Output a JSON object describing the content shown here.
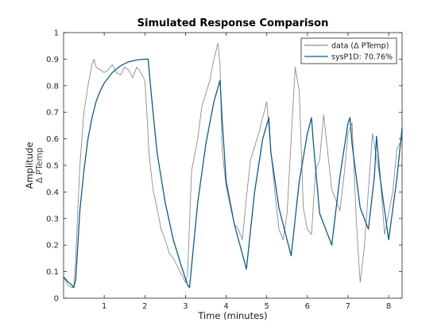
{
  "window": {
    "background": "#ffffff"
  },
  "chart_data": {
    "type": "line",
    "title": "Simulated Response Comparison",
    "xlabel": "Time (minutes)",
    "ylabel": "Amplitude",
    "ylabel_sub": "Δ PTemp",
    "xlim": [
      0,
      8.33
    ],
    "ylim": [
      0,
      1
    ],
    "xticks": [
      1,
      2,
      3,
      4,
      5,
      6,
      7,
      8
    ],
    "xtick_labels": [
      "1",
      "2",
      "3",
      "4",
      "5",
      "6",
      "7",
      "8"
    ],
    "yticks": [
      0,
      0.1,
      0.2,
      0.3,
      0.4,
      0.5,
      0.6,
      0.7,
      0.8,
      0.9,
      1
    ],
    "ytick_labels": [
      "0",
      "0.1",
      "0.2",
      "0.3",
      "0.4",
      "0.5",
      "0.6",
      "0.7",
      "0.8",
      "0.9",
      "1"
    ],
    "grid": false,
    "legend_position": "top-right",
    "series": [
      {
        "name": "data (Δ PTemp)",
        "color": "#8c8c8c",
        "x": [
          0,
          0.1,
          0.2,
          0.25,
          0.3,
          0.35,
          0.4,
          0.5,
          0.6,
          0.7,
          0.75,
          0.8,
          0.9,
          1.0,
          1.1,
          1.2,
          1.3,
          1.4,
          1.5,
          1.6,
          1.7,
          1.8,
          1.9,
          2.0,
          2.05,
          2.1,
          2.2,
          2.3,
          2.4,
          2.5,
          2.6,
          2.7,
          2.8,
          2.9,
          3.0,
          3.05,
          3.15,
          3.3,
          3.4,
          3.5,
          3.6,
          3.7,
          3.8,
          3.85,
          3.9,
          4.0,
          4.1,
          4.2,
          4.3,
          4.4,
          4.5,
          4.6,
          4.8,
          5.0,
          5.1,
          5.2,
          5.3,
          5.4,
          5.5,
          5.6,
          5.7,
          5.8,
          5.9,
          6.0,
          6.1,
          6.2,
          6.3,
          6.4,
          6.6,
          6.8,
          6.9,
          7.0,
          7.1,
          7.2,
          7.3,
          7.4,
          7.6,
          7.8,
          7.9,
          8.0,
          8.1,
          8.2,
          8.33
        ],
        "y": [
          0.08,
          0.05,
          0.04,
          0.04,
          0.15,
          0.33,
          0.5,
          0.7,
          0.8,
          0.88,
          0.9,
          0.87,
          0.86,
          0.85,
          0.86,
          0.88,
          0.85,
          0.84,
          0.87,
          0.86,
          0.83,
          0.87,
          0.85,
          0.82,
          0.7,
          0.55,
          0.41,
          0.34,
          0.26,
          0.22,
          0.17,
          0.15,
          0.12,
          0.09,
          0.06,
          0.09,
          0.48,
          0.6,
          0.72,
          0.77,
          0.82,
          0.9,
          0.96,
          0.88,
          0.56,
          0.42,
          0.35,
          0.28,
          0.26,
          0.22,
          0.38,
          0.52,
          0.62,
          0.74,
          0.56,
          0.4,
          0.26,
          0.22,
          0.32,
          0.6,
          0.87,
          0.78,
          0.34,
          0.26,
          0.24,
          0.48,
          0.52,
          0.69,
          0.41,
          0.33,
          0.46,
          0.62,
          0.66,
          0.3,
          0.06,
          0.19,
          0.62,
          0.44,
          0.24,
          0.32,
          0.4,
          0.56,
          0.6
        ]
      },
      {
        "name": "sysP1D: 70.76%",
        "color": "#0b5d86",
        "x": [
          0,
          0.12,
          0.2,
          0.25,
          0.3,
          0.4,
          0.5,
          0.6,
          0.7,
          0.8,
          0.9,
          1.0,
          1.2,
          1.4,
          1.6,
          1.8,
          2.0,
          2.05,
          2.08,
          2.15,
          2.3,
          2.5,
          2.7,
          2.9,
          3.05,
          3.1,
          3.3,
          3.5,
          3.7,
          3.85,
          3.9,
          4.0,
          4.2,
          4.5,
          4.7,
          4.9,
          5.05,
          5.1,
          5.3,
          5.6,
          5.8,
          6.0,
          6.1,
          6.15,
          6.3,
          6.6,
          6.8,
          7.0,
          7.05,
          7.1,
          7.3,
          7.5,
          7.65,
          7.7,
          7.8,
          8.0,
          8.2,
          8.33
        ],
        "y": [
          0.08,
          0.06,
          0.05,
          0.04,
          0.07,
          0.33,
          0.48,
          0.6,
          0.68,
          0.74,
          0.78,
          0.81,
          0.85,
          0.875,
          0.89,
          0.897,
          0.9,
          0.9,
          0.9,
          0.78,
          0.55,
          0.36,
          0.22,
          0.12,
          0.05,
          0.04,
          0.36,
          0.58,
          0.74,
          0.82,
          0.68,
          0.44,
          0.28,
          0.11,
          0.4,
          0.6,
          0.68,
          0.55,
          0.34,
          0.16,
          0.44,
          0.62,
          0.68,
          0.58,
          0.32,
          0.2,
          0.46,
          0.66,
          0.68,
          0.58,
          0.34,
          0.26,
          0.46,
          0.61,
          0.44,
          0.22,
          0.45,
          0.64
        ]
      }
    ]
  }
}
